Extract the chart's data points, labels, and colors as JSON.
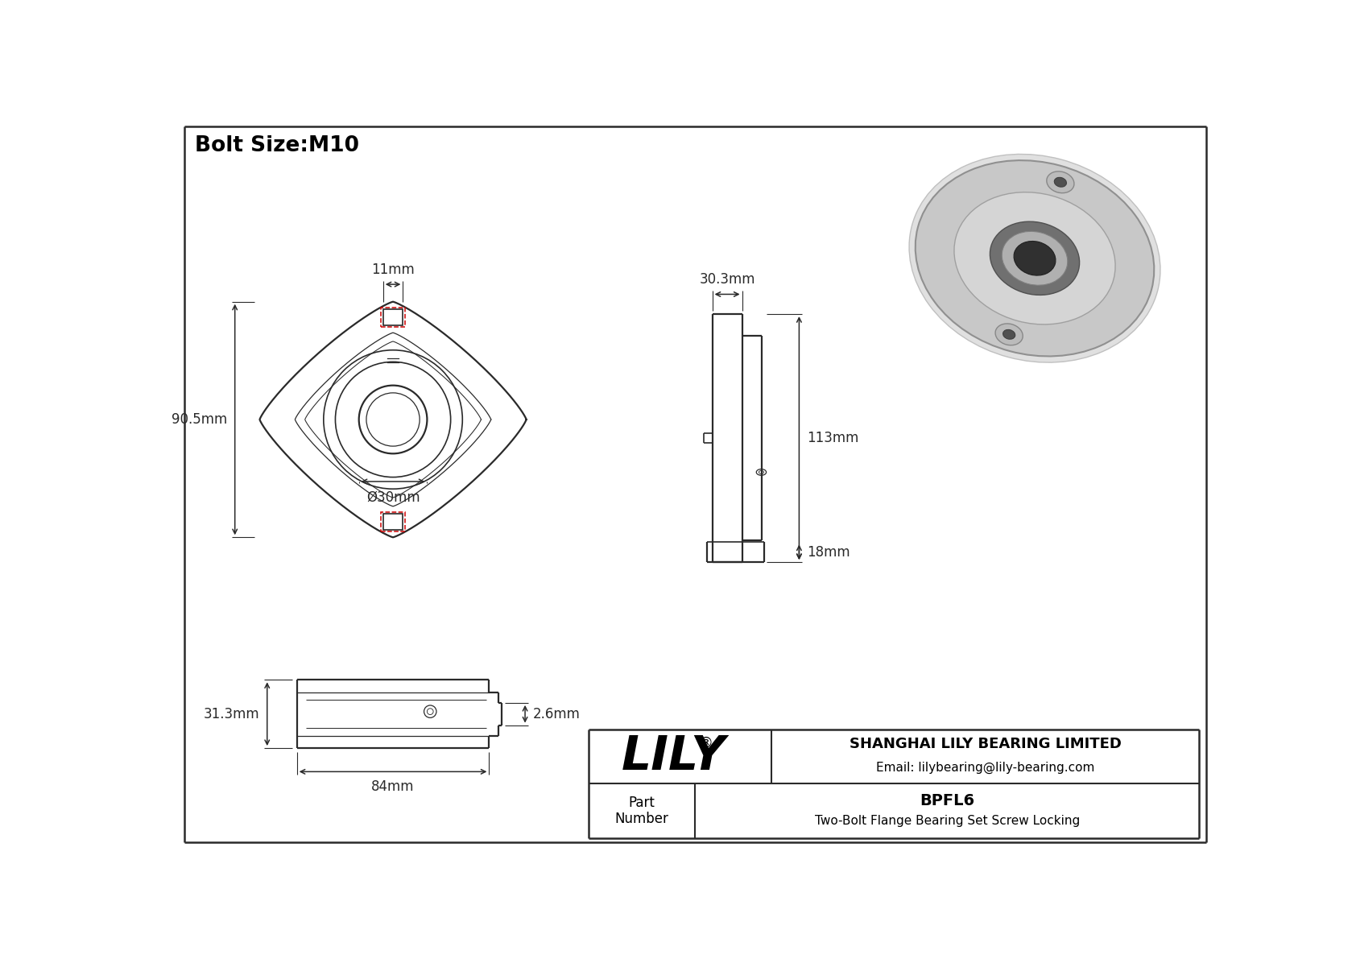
{
  "title": "Bolt Size:M10",
  "bg_color": "#ffffff",
  "line_color": "#2a2a2a",
  "dim_color": "#2a2a2a",
  "red_dashed_color": "#cc0000",
  "part_number": "BPFL6",
  "part_desc": "Two-Bolt Flange Bearing Set Screw Locking",
  "company": "SHANGHAI LILY BEARING LIMITED",
  "email": "Email: lilybearing@lily-bearing.com",
  "logo": "LILY",
  "dims": {
    "bolt_size": "M10",
    "width_top": "11mm",
    "height_overall": "90.5mm",
    "bore_dia": "Ø30mm",
    "side_width": "30.3mm",
    "side_height": "113mm",
    "side_base": "18mm",
    "bottom_height": "31.3mm",
    "bottom_length": "84mm",
    "protrusion": "2.6mm"
  }
}
